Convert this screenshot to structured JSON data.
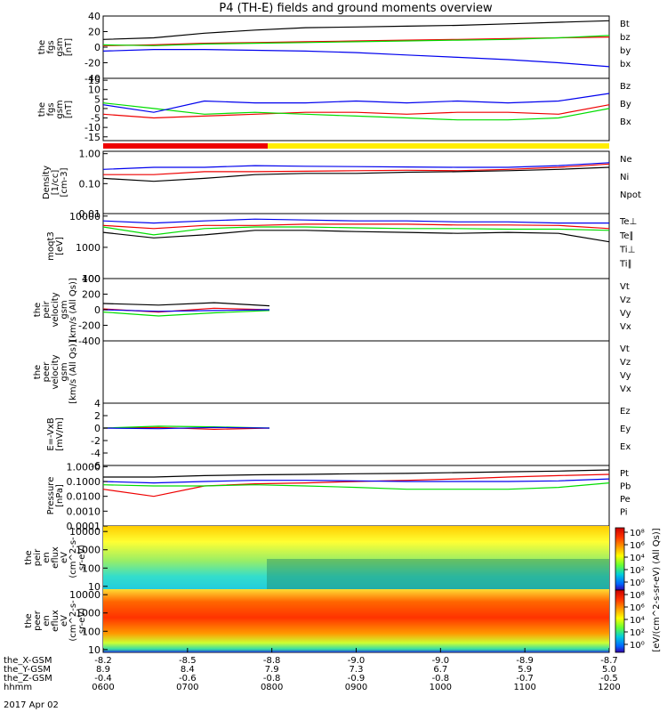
{
  "title": "P4 (TH-E) fields and ground moments overview",
  "colors": {
    "black": "#000000",
    "red": "#ee0000",
    "green": "#00dd00",
    "blue": "#0000ee",
    "bar_red": "#ee0000",
    "bar_yellow": "#ffee00"
  },
  "chart_data": [
    {
      "type": "line",
      "ylabel": [
        "the",
        "fgs",
        "gsm",
        "[nT]"
      ],
      "yticks": [
        40,
        20,
        0,
        -20,
        -40
      ],
      "ylim": [
        -40,
        40
      ],
      "series": [
        {
          "name": "Bt",
          "color": "black",
          "values": [
            10,
            12,
            18,
            22,
            25,
            26,
            27,
            28,
            30,
            32,
            34
          ]
        },
        {
          "name": "bz",
          "color": "red",
          "values": [
            2,
            3,
            5,
            6,
            7,
            8,
            9,
            10,
            11,
            12,
            13
          ]
        },
        {
          "name": "by",
          "color": "green",
          "values": [
            3,
            2,
            4,
            5,
            6,
            7,
            8,
            9,
            10,
            12,
            15
          ]
        },
        {
          "name": "bx",
          "color": "blue",
          "values": [
            -5,
            -3,
            -3,
            -4,
            -5,
            -7,
            -10,
            -13,
            -16,
            -20,
            -25
          ]
        }
      ]
    },
    {
      "type": "line",
      "ylabel": [
        "the",
        "fgs",
        "gsm",
        "[nT]"
      ],
      "yticks": [
        15,
        10,
        5,
        0,
        -5,
        -10,
        -15
      ],
      "ylim": [
        -17,
        16
      ],
      "series": [
        {
          "name": "Bz",
          "color": "red",
          "values": [
            -3,
            -5,
            -4,
            -3,
            -2,
            -2,
            -3,
            -2,
            -2,
            -3,
            2
          ]
        },
        {
          "name": "By",
          "color": "green",
          "values": [
            3,
            0,
            -3,
            -2,
            -3,
            -4,
            -5,
            -6,
            -6,
            -5,
            0
          ]
        },
        {
          "name": "Bx",
          "color": "blue",
          "values": [
            2,
            -2,
            4,
            3,
            3,
            4,
            3,
            4,
            3,
            4,
            8
          ]
        }
      ]
    },
    {
      "type": "line",
      "log": true,
      "ylabel": [
        "Density",
        "[1/cc]",
        "[cm-3]"
      ],
      "yticks": [
        1.0,
        0.1,
        0.01
      ],
      "ytick_labels": [
        "1.00",
        "0.10",
        "0.01"
      ],
      "ylim": [
        0.01,
        1.2
      ],
      "series": [
        {
          "name": "Ne",
          "color": "red",
          "values": [
            0.2,
            0.2,
            0.25,
            0.25,
            0.26,
            0.27,
            0.28,
            0.27,
            0.3,
            0.35,
            0.45
          ]
        },
        {
          "name": "Ni",
          "color": "black",
          "values": [
            0.15,
            0.12,
            0.15,
            0.2,
            0.22,
            0.22,
            0.24,
            0.25,
            0.27,
            0.3,
            0.35
          ]
        },
        {
          "name": "Npot",
          "color": "blue",
          "values": [
            0.3,
            0.35,
            0.35,
            0.4,
            0.38,
            0.37,
            0.36,
            0.35,
            0.35,
            0.4,
            0.5
          ]
        }
      ]
    },
    {
      "type": "line",
      "log": true,
      "ylabel": [
        "moqt3",
        "[eV]"
      ],
      "yticks": [
        10000,
        1000,
        100
      ],
      "ytick_labels": [
        "10000",
        "1000",
        "100"
      ],
      "ylim": [
        100,
        12000
      ],
      "series": [
        {
          "name": "Te⊥",
          "color": "red",
          "values": [
            5000,
            4000,
            5000,
            5000,
            5500,
            5500,
            5500,
            5200,
            5200,
            5000,
            4000
          ]
        },
        {
          "name": "Te∥",
          "color": "black",
          "values": [
            3000,
            2000,
            2500,
            3500,
            3500,
            3200,
            3000,
            2800,
            3000,
            2800,
            1500
          ]
        },
        {
          "name": "Ti⊥",
          "color": "blue",
          "values": [
            7000,
            6000,
            7000,
            8000,
            7500,
            7000,
            7000,
            6500,
            6500,
            6000,
            6000
          ]
        },
        {
          "name": "Ti∥",
          "color": "green",
          "values": [
            4500,
            2500,
            4000,
            4500,
            4500,
            4200,
            4000,
            4000,
            3800,
            3800,
            3500
          ]
        }
      ]
    },
    {
      "type": "line",
      "ylabel": [
        "the",
        "peir",
        "velocity",
        "gsm",
        "[km/s (All Qs)]"
      ],
      "yticks": [
        400,
        200,
        0,
        -200,
        -400
      ],
      "ylim": [
        -400,
        400
      ],
      "series": [
        {
          "name": "Vt",
          "color": "black",
          "values": [
            80,
            60,
            90,
            50
          ]
        },
        {
          "name": "Vz",
          "color": "red",
          "values": [
            10,
            -30,
            20,
            0
          ]
        },
        {
          "name": "Vy",
          "color": "green",
          "values": [
            -30,
            -80,
            -40,
            -10
          ]
        },
        {
          "name": "Vx",
          "color": "blue",
          "values": [
            0,
            -20,
            -10,
            0
          ]
        }
      ]
    },
    {
      "type": "line",
      "ylabel": [
        "the",
        "peer",
        "velocity",
        "gsm",
        "[km/s (All Qs)]"
      ],
      "yticks": [],
      "ylim": [
        -1,
        1
      ],
      "series": [
        {
          "name": "Vt",
          "color": "black",
          "values": []
        },
        {
          "name": "Vz",
          "color": "red",
          "values": []
        },
        {
          "name": "Vy",
          "color": "green",
          "values": []
        },
        {
          "name": "Vx",
          "color": "blue",
          "values": []
        }
      ]
    },
    {
      "type": "line",
      "ylabel": [
        "E=-VxB",
        "[mV/m]"
      ],
      "yticks": [
        4,
        2,
        0,
        -2,
        -4,
        -6
      ],
      "ylim": [
        -6,
        4
      ],
      "series": [
        {
          "name": "Ez",
          "color": "red",
          "values": [
            0,
            0.1,
            -0.2,
            0
          ]
        },
        {
          "name": "Ey",
          "color": "green",
          "values": [
            0,
            0.3,
            0.2,
            0
          ]
        },
        {
          "name": "Ex",
          "color": "blue",
          "values": [
            0,
            -0.1,
            0.1,
            0
          ]
        }
      ]
    },
    {
      "type": "line",
      "log": true,
      "ylabel": [
        "Pressure",
        "[nPa]"
      ],
      "yticks": [
        1.0,
        0.1,
        0.01,
        0.001,
        0.0001
      ],
      "ytick_labels": [
        "1.0000",
        "0.1000",
        "0.0100",
        "0.0010",
        "0.0001"
      ],
      "ylim": [
        0.0001,
        1.2
      ],
      "series": [
        {
          "name": "Pt",
          "color": "black",
          "values": [
            0.2,
            0.2,
            0.25,
            0.28,
            0.3,
            0.33,
            0.35,
            0.4,
            0.45,
            0.5,
            0.6
          ]
        },
        {
          "name": "Pb",
          "color": "red",
          "values": [
            0.03,
            0.01,
            0.05,
            0.07,
            0.08,
            0.1,
            0.12,
            0.15,
            0.2,
            0.25,
            0.3
          ]
        },
        {
          "name": "Pe",
          "color": "green",
          "values": [
            0.06,
            0.05,
            0.05,
            0.06,
            0.05,
            0.04,
            0.03,
            0.03,
            0.03,
            0.04,
            0.08
          ]
        },
        {
          "name": "Pi",
          "color": "blue",
          "values": [
            0.1,
            0.08,
            0.1,
            0.12,
            0.12,
            0.11,
            0.1,
            0.1,
            0.1,
            0.11,
            0.15
          ]
        }
      ]
    },
    {
      "type": "heatmap",
      "log": true,
      "ylabel": [
        "the",
        "peir",
        "en",
        "eflux",
        "eV",
        "(cm^2-s-",
        "sr-eV)"
      ],
      "yticks": [
        10000,
        1000,
        100,
        10
      ],
      "ytick_labels": [
        "10000",
        "1000",
        "100",
        "10"
      ],
      "ylim": [
        7,
        20000
      ]
    },
    {
      "type": "heatmap",
      "log": true,
      "ylabel": [
        "the",
        "peer",
        "en",
        "eflux",
        "eV",
        "(cm^2-s-",
        "sr-eV)"
      ],
      "yticks": [
        10000,
        1000,
        100,
        10
      ],
      "ytick_labels": [
        "10000",
        "1000",
        "100",
        "10"
      ],
      "ylim": [
        7,
        20000
      ]
    }
  ],
  "colorbar": {
    "label": "[eV/(cm^2-s-sr-eV) (All Qs)]",
    "ticks": [
      "10⁸",
      "10⁶",
      "10⁴",
      "10²",
      "10⁰",
      "10⁸",
      "10⁶",
      "10⁴",
      "10²",
      "10⁰"
    ]
  },
  "xaxis": {
    "rows": [
      {
        "label": "the_X-GSM",
        "values": [
          "-8.2",
          "-8.5",
          "-8.8",
          "-9.0",
          "-9.0",
          "-8.9",
          "-8.7"
        ]
      },
      {
        "label": "the_Y-GSM",
        "values": [
          "8.9",
          "8.4",
          "7.9",
          "7.3",
          "6.7",
          "5.9",
          "5.0"
        ]
      },
      {
        "label": "the_Z-GSM",
        "values": [
          "-0.4",
          "-0.6",
          "-0.8",
          "-0.9",
          "-0.8",
          "-0.7",
          "-0.5"
        ]
      },
      {
        "label": "hhmm",
        "values": [
          "0600",
          "0700",
          "0800",
          "0900",
          "1000",
          "1100",
          "1200"
        ]
      }
    ],
    "date": "2017 Apr 02"
  }
}
